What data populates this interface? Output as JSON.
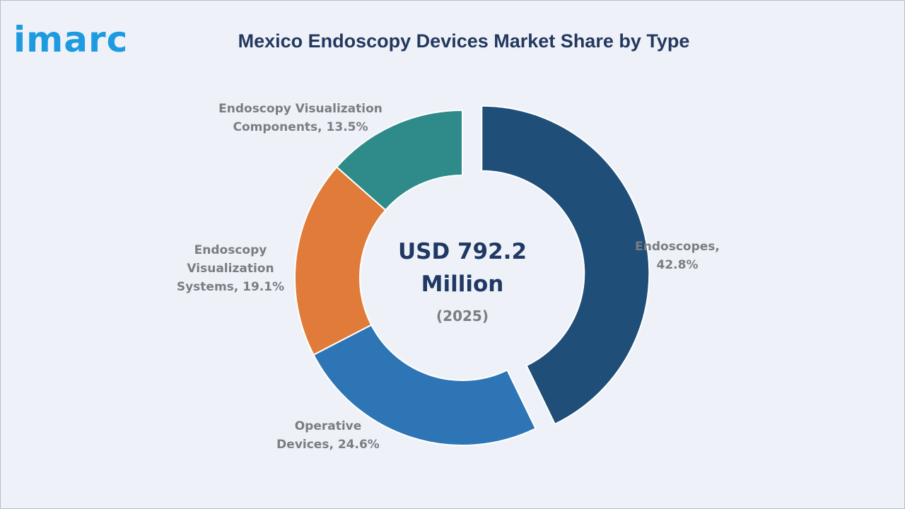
{
  "brand": {
    "logo_text": "imarc"
  },
  "chart_data": {
    "type": "pie",
    "title": "Mexico Endoscopy Devices Market Share by Type",
    "center": {
      "value_line1": "USD 792.2",
      "value_line2": "Million",
      "year": "(2025)"
    },
    "slices": [
      {
        "category": "Endoscopes",
        "value": 42.8,
        "color": "#1f4e79",
        "label_lines": [
          "Endoscopes,",
          "42.8%"
        ],
        "exploded": true
      },
      {
        "category": "Operative Devices",
        "value": 24.6,
        "color": "#2e75b6",
        "label_lines": [
          "Operative",
          "Devices, 24.6%"
        ],
        "exploded": false
      },
      {
        "category": "Endoscopy Visualization Systems",
        "value": 19.1,
        "color": "#e07b39",
        "label_lines": [
          "Endoscopy",
          "Visualization",
          "Systems, 19.1%"
        ],
        "exploded": false
      },
      {
        "category": "Endoscopy Visualization Components",
        "value": 13.5,
        "color": "#2e8b8a",
        "label_lines": [
          "Endoscopy Visualization",
          "Components, 13.5%"
        ],
        "exploded": false
      }
    ]
  }
}
